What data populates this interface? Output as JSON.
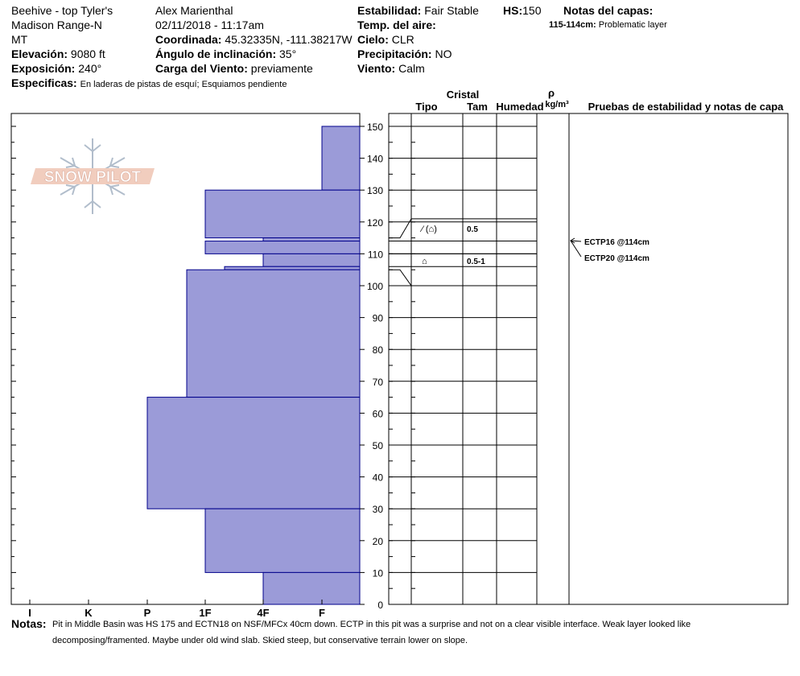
{
  "header": {
    "location_line1": "Beehive - top Tyler's",
    "location_line2": "Madison Range-N",
    "location_line3": "MT",
    "observer": "Alex Marienthal",
    "datetime": "02/11/2018 - 11:17am",
    "elevation_label": "Elevación:",
    "elevation_value": "9080 ft",
    "aspect_label": "Exposición:",
    "aspect_value": "240°",
    "coord_label": "Coordinada:",
    "coord_value": "45.32335N, -111.38217W",
    "slope_label": "Ángulo de inclinación:",
    "slope_value": "35°",
    "wind_load_label": "Carga del Viento:",
    "wind_load_value": "previamente",
    "stability_label": "Estabilidad:",
    "stability_value": "Fair Stable",
    "hs_label": "HS:",
    "hs_value": "150",
    "air_temp_label": "Temp. del aire:",
    "sky_label": "Cielo:",
    "sky_value": "CLR",
    "precip_label": "Precipitación:",
    "precip_value": "NO",
    "wind_label": "Viento:",
    "wind_value": "Calm",
    "layer_notes_label": "Notas del capas:",
    "layer_note_range": "115-114cm:",
    "layer_note_text": "Problematic layer",
    "specifics_label": "Especificas:",
    "specifics_value": "En laderas de pistas de esquí; Esquiamos pendiente"
  },
  "logo_text": "SNOW PILOT",
  "columns": {
    "crystal": "Cristal",
    "type": "Tipo",
    "size": "Tam",
    "humidity": "Humedad",
    "rho": "ρ",
    "density_unit": "kg/m³",
    "tests": "Pruebas de estabilidad y notas de capa"
  },
  "layer_entries": [
    {
      "type_symbol": "⁄ (⌂)",
      "size": "0.5"
    },
    {
      "type_symbol": "⌂",
      "size": "0.5-1"
    }
  ],
  "stability_tests": [
    "ECTP16 @114cm",
    "ECTP20 @114cm"
  ],
  "notes_label": "Notas:",
  "notes_line1": "Pit in Middle Basin was HS 175 and ECTN18 on NSF/MFCx 40cm down. ECTP in this pit was a surprise and not on a clear visible interface. Weak layer looked like",
  "notes_line2": "decomposing/framented. Maybe under old wind slab. Skied steep, but conservative terrain lower on slope.",
  "colors": {
    "hardness_fill": "#9b9bd8",
    "hardness_stroke": "#00008b"
  },
  "chart_data": {
    "type": "bar",
    "orientation": "horizontal",
    "description_x": "hand hardness",
    "hardness_categories": [
      "I",
      "K",
      "P",
      "1F",
      "4F",
      "F"
    ],
    "y_ticks": [
      0,
      10,
      20,
      30,
      40,
      50,
      60,
      70,
      80,
      90,
      100,
      110,
      120,
      130,
      140,
      150
    ],
    "ylim": [
      0,
      150
    ],
    "layers": [
      {
        "top": 150,
        "bottom": 130,
        "hardness": "F"
      },
      {
        "top": 130,
        "bottom": 115,
        "hardness": "1F"
      },
      {
        "top": 115,
        "bottom": 114,
        "hardness": "4F"
      },
      {
        "top": 114,
        "bottom": 110,
        "hardness": "1F"
      },
      {
        "top": 110,
        "bottom": 106,
        "hardness": "4F"
      },
      {
        "top": 106,
        "bottom": 105,
        "hardness": "1F+"
      },
      {
        "top": 105,
        "bottom": 65,
        "hardness": "P-"
      },
      {
        "top": 65,
        "bottom": 30,
        "hardness": "P+"
      },
      {
        "top": 30,
        "bottom": 10,
        "hardness": "1F"
      },
      {
        "top": 10,
        "bottom": 0,
        "hardness": "4F"
      }
    ]
  }
}
